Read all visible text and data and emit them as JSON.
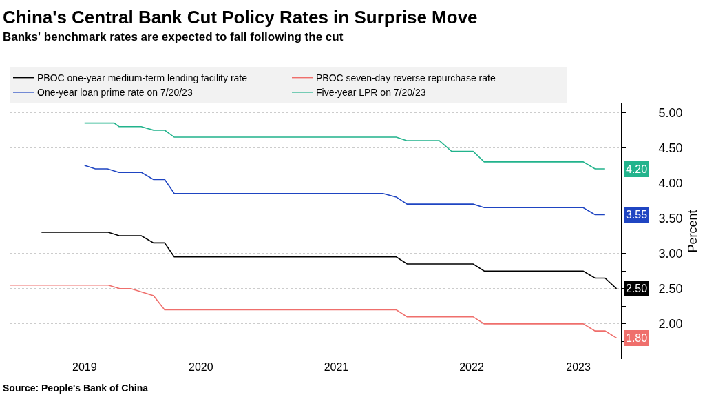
{
  "chart_data": {
    "type": "line",
    "title": "China's Central Bank Cut Policy Rates in Surprise Move",
    "subtitle": "Banks' benchmark rates are expected to fall following the cut",
    "ylabel": "Percent",
    "annotations": [
      "Source: People's Bank of China"
    ],
    "series": [
      {
        "name": "PBOC one-year medium-term lending facility rate",
        "color": "#000000",
        "x": [
          "2019-04-28",
          "2019-10-25",
          "2019-11-25",
          "2020-01-22",
          "2020-02-24",
          "2020-03-25",
          "2020-04-20",
          "2021-12-10",
          "2022-01-08",
          "2022-07-05",
          "2022-08-04",
          "2023-04-28",
          "2023-05-30",
          "2023-06-26",
          "2023-07-27"
        ],
        "values": [
          3.3,
          3.3,
          3.25,
          3.25,
          3.15,
          3.15,
          2.95,
          2.95,
          2.85,
          2.85,
          2.75,
          2.75,
          2.65,
          2.65,
          2.5
        ],
        "value_labels": [
          null,
          null,
          null,
          null,
          null,
          null,
          null,
          null,
          null,
          null,
          null,
          null,
          null,
          null,
          "2.50"
        ]
      },
      {
        "name": "PBOC seven-day reverse repurchase rate",
        "color": "#ef6f6c",
        "x": [
          "2019-02-01",
          "2019-10-25",
          "2019-11-25",
          "2019-12-25",
          "2020-02-24",
          "2020-03-25",
          "2021-12-10",
          "2022-01-08",
          "2022-07-05",
          "2022-08-04",
          "2023-04-28",
          "2023-05-30",
          "2023-06-26",
          "2023-07-27"
        ],
        "values": [
          2.55,
          2.55,
          2.5,
          2.5,
          2.4,
          2.2,
          2.2,
          2.1,
          2.1,
          2.0,
          2.0,
          1.9,
          1.9,
          1.8
        ],
        "value_labels": [
          null,
          null,
          null,
          null,
          null,
          null,
          null,
          null,
          null,
          null,
          null,
          null,
          null,
          "1.80"
        ]
      },
      {
        "name": "One-year loan prime rate on 7/20/23",
        "color": "#1f45c2",
        "x": [
          "2019-08-22",
          "2019-09-20",
          "2019-10-23",
          "2019-11-23",
          "2020-01-22",
          "2020-02-24",
          "2020-03-25",
          "2020-04-20",
          "2021-11-04",
          "2021-12-10",
          "2022-01-08",
          "2022-07-05",
          "2022-08-04",
          "2023-04-28",
          "2023-05-30",
          "2023-06-26"
        ],
        "values": [
          4.25,
          4.2,
          4.2,
          4.15,
          4.15,
          4.05,
          4.05,
          3.85,
          3.85,
          3.8,
          3.7,
          3.7,
          3.65,
          3.65,
          3.55,
          3.55
        ],
        "value_labels": [
          null,
          null,
          null,
          null,
          null,
          null,
          null,
          null,
          null,
          null,
          null,
          null,
          null,
          null,
          null,
          "3.55"
        ]
      },
      {
        "name": "Five-year LPR on 7/20/23",
        "color": "#22b38c",
        "x": [
          "2019-08-22",
          "2019-11-10",
          "2019-11-23",
          "2020-01-22",
          "2020-02-24",
          "2020-03-25",
          "2020-04-20",
          "2021-12-10",
          "2022-01-08",
          "2022-04-05",
          "2022-05-08",
          "2022-07-05",
          "2022-08-04",
          "2023-04-28",
          "2023-05-30",
          "2023-06-26"
        ],
        "values": [
          4.85,
          4.85,
          4.8,
          4.8,
          4.75,
          4.75,
          4.65,
          4.65,
          4.6,
          4.6,
          4.45,
          4.45,
          4.3,
          4.3,
          4.2,
          4.2
        ],
        "value_labels": [
          null,
          null,
          null,
          null,
          null,
          null,
          null,
          null,
          null,
          null,
          null,
          null,
          null,
          null,
          null,
          "4.20"
        ]
      }
    ],
    "xlim": [
      "2019-02-01",
      "2023-08-08"
    ],
    "xticks": [
      {
        "value": "2019-08-22",
        "label": "2019"
      },
      {
        "value": "2020-07-01",
        "label": "2020"
      },
      {
        "value": "2021-07-01",
        "label": "2021"
      },
      {
        "value": "2022-07-01",
        "label": "2022"
      },
      {
        "value": "2023-04-15",
        "label": "2023"
      }
    ],
    "ylim": [
      1.5,
      5.13
    ],
    "yticks": [
      {
        "value": 1.75,
        "label": null
      },
      {
        "value": 2,
        "label": "2.00"
      },
      {
        "value": 2.25,
        "label": null
      },
      {
        "value": 2.5,
        "label": "2.50"
      },
      {
        "value": 2.75,
        "label": null
      },
      {
        "value": 3,
        "label": "3.00"
      },
      {
        "value": 3.25,
        "label": null
      },
      {
        "value": 3.5,
        "label": "3.50"
      },
      {
        "value": 3.75,
        "label": null
      },
      {
        "value": 4,
        "label": "4.00"
      },
      {
        "value": 4.25,
        "label": null
      },
      {
        "value": 4.5,
        "label": "4.50"
      },
      {
        "value": 4.75,
        "label": null
      },
      {
        "value": 5,
        "label": "5.00"
      }
    ],
    "grid": "y",
    "legend": "top left",
    "marker": "none",
    "line_style": "solid"
  }
}
